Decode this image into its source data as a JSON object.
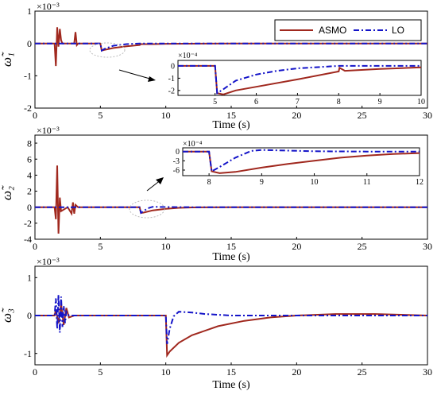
{
  "colors": {
    "asmo": "#a0281e",
    "lo": "#1414c8"
  },
  "legend": {
    "asmo": "ASMO",
    "lo": "LO"
  },
  "panels": [
    {
      "ylabel": "ω̃₁",
      "exp": "×10⁻³",
      "xlabel": "Time (s)",
      "xticks": [
        "0",
        "5",
        "10",
        "15",
        "20",
        "25",
        "30"
      ],
      "yticks": [
        "1",
        "0",
        "-1",
        "-2"
      ]
    },
    {
      "ylabel": "ω̃₂",
      "exp": "×10⁻³",
      "xlabel": "Time (s)",
      "xticks": [
        "0",
        "5",
        "10",
        "15",
        "20",
        "25",
        "30"
      ],
      "yticks": [
        "8",
        "6",
        "4",
        "2",
        "0",
        "-2",
        "-4"
      ]
    },
    {
      "ylabel": "ω̃₃",
      "exp": "×10⁻³",
      "xlabel": "Time (s)",
      "xticks": [
        "0",
        "5",
        "10",
        "15",
        "20",
        "25",
        "30"
      ],
      "yticks": [
        "1",
        "0",
        "-1"
      ]
    }
  ],
  "insets": [
    {
      "exp": "×10⁻⁴",
      "xticks": [
        "5",
        "6",
        "7",
        "8",
        "9",
        "10"
      ],
      "yticks": [
        "0",
        "-1",
        "-2"
      ]
    },
    {
      "exp": "×10⁻⁴",
      "xticks": [
        "8",
        "9",
        "10",
        "11",
        "12"
      ],
      "yticks": [
        "0",
        "-3",
        "-6"
      ]
    }
  ],
  "chart_data": [
    {
      "type": "line",
      "xlim": [
        0,
        30
      ],
      "ylim": [
        -2,
        1
      ],
      "y_scale": "1e-3",
      "legend_position": "top-right",
      "series": [
        {
          "name": "ASMO",
          "x": [
            0,
            1.5,
            1.6,
            1.7,
            1.8,
            1.9,
            2.0,
            2.1,
            3.0,
            3.1,
            3.2,
            3.3,
            5.0,
            5.1,
            5.3,
            6,
            7,
            8,
            8.1,
            9,
            10,
            15,
            20,
            25,
            30
          ],
          "y": [
            0,
            0,
            -0.7,
            0.5,
            -0.1,
            0.45,
            0.1,
            0,
            0,
            0.35,
            -0.05,
            0,
            0,
            -0.22,
            -0.2,
            -0.14,
            -0.09,
            -0.05,
            -0.02,
            -0.02,
            -0.01,
            0,
            0,
            0,
            0
          ]
        },
        {
          "name": "LO",
          "x": [
            0,
            5,
            5.1,
            5.3,
            6,
            7,
            8,
            10,
            30
          ],
          "y": [
            0,
            0,
            -0.22,
            -0.17,
            -0.07,
            -0.02,
            0,
            0,
            0
          ]
        }
      ]
    },
    {
      "type": "line",
      "xlim": [
        0,
        30
      ],
      "ylim": [
        -4,
        9
      ],
      "y_scale": "1e-3",
      "series": [
        {
          "name": "ASMO",
          "x": [
            0,
            1.5,
            1.6,
            1.7,
            1.8,
            1.9,
            2.0,
            2.5,
            2.8,
            2.9,
            3.0,
            3.1,
            3.3,
            8,
            8.1,
            8.3,
            9,
            10,
            11,
            12,
            15,
            30
          ],
          "y": [
            0,
            0,
            -1.5,
            5.2,
            -3.3,
            1.2,
            -0.5,
            0,
            -0.8,
            0.6,
            -0.8,
            0.3,
            0,
            0,
            -0.72,
            -0.68,
            -0.4,
            -0.2,
            -0.08,
            -0.03,
            0,
            0
          ]
        },
        {
          "name": "LO",
          "x": [
            0,
            8,
            8.1,
            8.3,
            8.6,
            9,
            9.5,
            10,
            12,
            30
          ],
          "y": [
            0,
            0,
            -0.72,
            -0.5,
            -0.15,
            0.05,
            0.04,
            0.02,
            0,
            0
          ]
        }
      ]
    },
    {
      "type": "line",
      "xlim": [
        0,
        30
      ],
      "ylim": [
        -1.3,
        1.3
      ],
      "y_scale": "1e-3",
      "series": [
        {
          "name": "ASMO",
          "x": [
            0,
            1.5,
            1.6,
            1.8,
            2.0,
            2.2,
            2.4,
            2.6,
            3,
            10,
            10.1,
            10.3,
            11,
            12,
            14,
            16,
            18,
            20,
            23,
            26,
            30
          ],
          "y": [
            0,
            0,
            0.15,
            -0.2,
            0.3,
            -0.25,
            0.2,
            -0.05,
            0,
            0,
            -1.05,
            -0.95,
            -0.72,
            -0.52,
            -0.28,
            -0.14,
            -0.05,
            0.0,
            0.04,
            0.04,
            0.0
          ]
        },
        {
          "name": "LO",
          "x": [
            0,
            1.5,
            1.6,
            1.7,
            1.8,
            1.9,
            2.0,
            2.1,
            2.2,
            2.3,
            2.4,
            2.6,
            3,
            10,
            10.1,
            10.3,
            10.6,
            11,
            12,
            13,
            15,
            20,
            25,
            30
          ],
          "y": [
            0,
            0,
            0.45,
            -0.35,
            0.55,
            -0.45,
            0.5,
            -0.3,
            0.25,
            -0.2,
            0.1,
            0,
            0,
            0,
            -0.75,
            -0.35,
            -0.02,
            0.1,
            0.08,
            0.04,
            0.0,
            0.0,
            0.0,
            0.0
          ]
        }
      ]
    }
  ]
}
